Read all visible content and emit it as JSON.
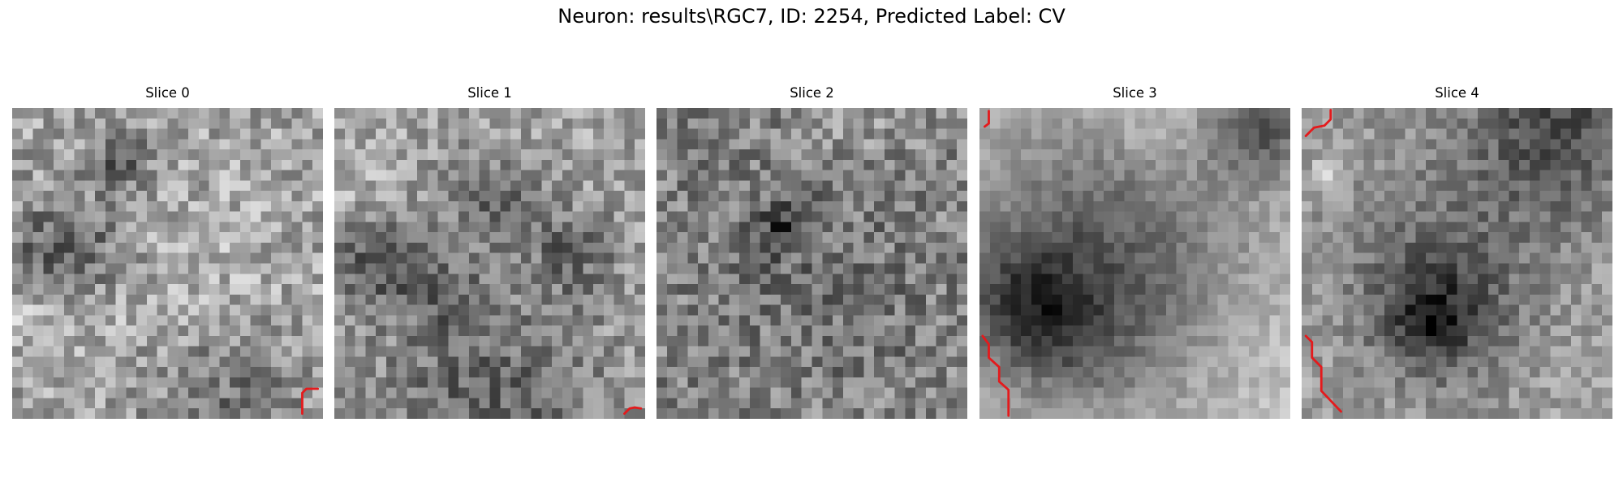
{
  "figure": {
    "title": "Neuron: results\\RGC7, ID: 2254, Predicted Label: CV"
  },
  "colors": {
    "contour": "#e41a1c",
    "colormap": "gray"
  },
  "grid_size": 30,
  "slices": [
    {
      "title": "Slice 0",
      "description": "mottled gray noise; dark spot upper-center and dark blob left-middle",
      "contours": [
        [
          [
            28,
            29.5
          ],
          [
            28,
            27.5
          ],
          [
            28.4,
            27.1
          ],
          [
            29.5,
            27.1
          ]
        ]
      ]
    },
    {
      "title": "Slice 1",
      "description": "gray noise with a faint dark ring-shaped structure across the middle",
      "contours": [
        [
          [
            28,
            29.5
          ],
          [
            28.5,
            29
          ],
          [
            29,
            28.9
          ],
          [
            29.6,
            29
          ]
        ]
      ]
    },
    {
      "title": "Slice 2",
      "description": "darker noisy texture across the whole field",
      "contours": []
    },
    {
      "title": "Slice 3",
      "description": "large dark oval blob center-left surrounded by bright halo",
      "contours": [
        [
          [
            0.5,
            1.8
          ],
          [
            0.9,
            1.5
          ],
          [
            0.9,
            0.3
          ]
        ],
        [
          [
            0.3,
            22
          ],
          [
            0.9,
            22.8
          ],
          [
            0.9,
            24.1
          ],
          [
            1.9,
            25
          ],
          [
            1.9,
            26.4
          ],
          [
            2.8,
            27.2
          ],
          [
            2.8,
            29.7
          ]
        ]
      ]
    },
    {
      "title": "Slice 4",
      "description": "noise with a dark blob lower-center and dark band at top-right",
      "contours": [
        [
          [
            0.4,
            2.7
          ],
          [
            1.2,
            1.9
          ],
          [
            2.2,
            1.7
          ],
          [
            2.8,
            1.1
          ],
          [
            2.8,
            0.2
          ]
        ],
        [
          [
            0.4,
            22
          ],
          [
            1.0,
            22.6
          ],
          [
            1.0,
            24.1
          ],
          [
            1.9,
            25
          ],
          [
            1.9,
            27.3
          ],
          [
            3.8,
            29.3
          ]
        ]
      ]
    }
  ]
}
